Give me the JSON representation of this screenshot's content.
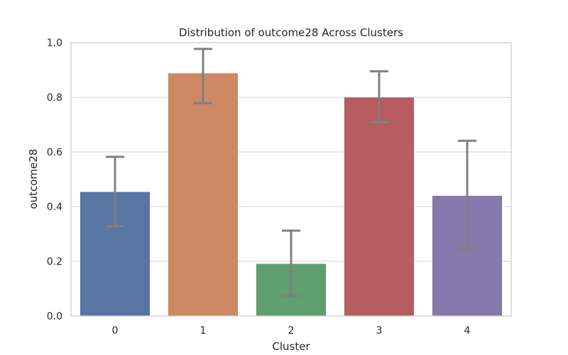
{
  "chart_data": {
    "type": "bar",
    "title": "Distribution of outcome28 Across Clusters",
    "xlabel": "Cluster",
    "ylabel": "outcome28",
    "categories": [
      "0",
      "1",
      "2",
      "3",
      "4"
    ],
    "values": [
      0.455,
      0.889,
      0.192,
      0.801,
      0.441
    ],
    "error_bars": {
      "lower": [
        0.328,
        0.779,
        0.073,
        0.709,
        0.243
      ],
      "upper": [
        0.582,
        0.977,
        0.312,
        0.895,
        0.641
      ]
    },
    "ylim": [
      0,
      1.0
    ],
    "yticks": [
      "0.0",
      "0.2",
      "0.4",
      "0.6",
      "0.8",
      "1.0"
    ],
    "grid": true,
    "colors": {
      "bars": [
        "#5875a4",
        "#cc8963",
        "#5f9e6e",
        "#b55d60",
        "#857aab"
      ],
      "error_bar": "#808080",
      "grid": "#d3d3d3",
      "spine": "#cccccc",
      "text": "#262626"
    }
  }
}
